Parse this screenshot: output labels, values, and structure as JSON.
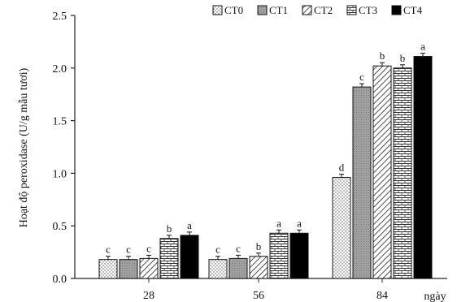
{
  "chart_data": {
    "type": "bar",
    "title": "",
    "ylabel": "Hoạt độ peroxidase (U/g mẫu tươi)",
    "xlabel": "ngày",
    "ylim": [
      0,
      2.5
    ],
    "yticks": [
      "0.0",
      "0.5",
      "1.0",
      "1.5",
      "2.0",
      "2.5"
    ],
    "categories": [
      "28",
      "56",
      "84"
    ],
    "legend_position": "top-right",
    "series": [
      {
        "name": "CT0",
        "pattern": "dots",
        "color": "#ffffff",
        "values": [
          0.18,
          0.18,
          0.96
        ],
        "labels": [
          "c",
          "c",
          "d"
        ]
      },
      {
        "name": "CT1",
        "pattern": "gray",
        "color": "#a8a8a8",
        "values": [
          0.18,
          0.19,
          1.82
        ],
        "labels": [
          "c",
          "c",
          "c"
        ]
      },
      {
        "name": "CT2",
        "pattern": "hatch",
        "color": "#ffffff",
        "values": [
          0.19,
          0.21,
          2.02
        ],
        "labels": [
          "c",
          "b",
          "b"
        ]
      },
      {
        "name": "CT3",
        "pattern": "brick",
        "color": "#ffffff",
        "values": [
          0.38,
          0.43,
          2.0
        ],
        "labels": [
          "b",
          "a",
          "b"
        ]
      },
      {
        "name": "CT4",
        "pattern": "solid",
        "color": "#000000",
        "values": [
          0.41,
          0.43,
          2.11
        ],
        "labels": [
          "a",
          "a",
          "a"
        ]
      }
    ]
  }
}
